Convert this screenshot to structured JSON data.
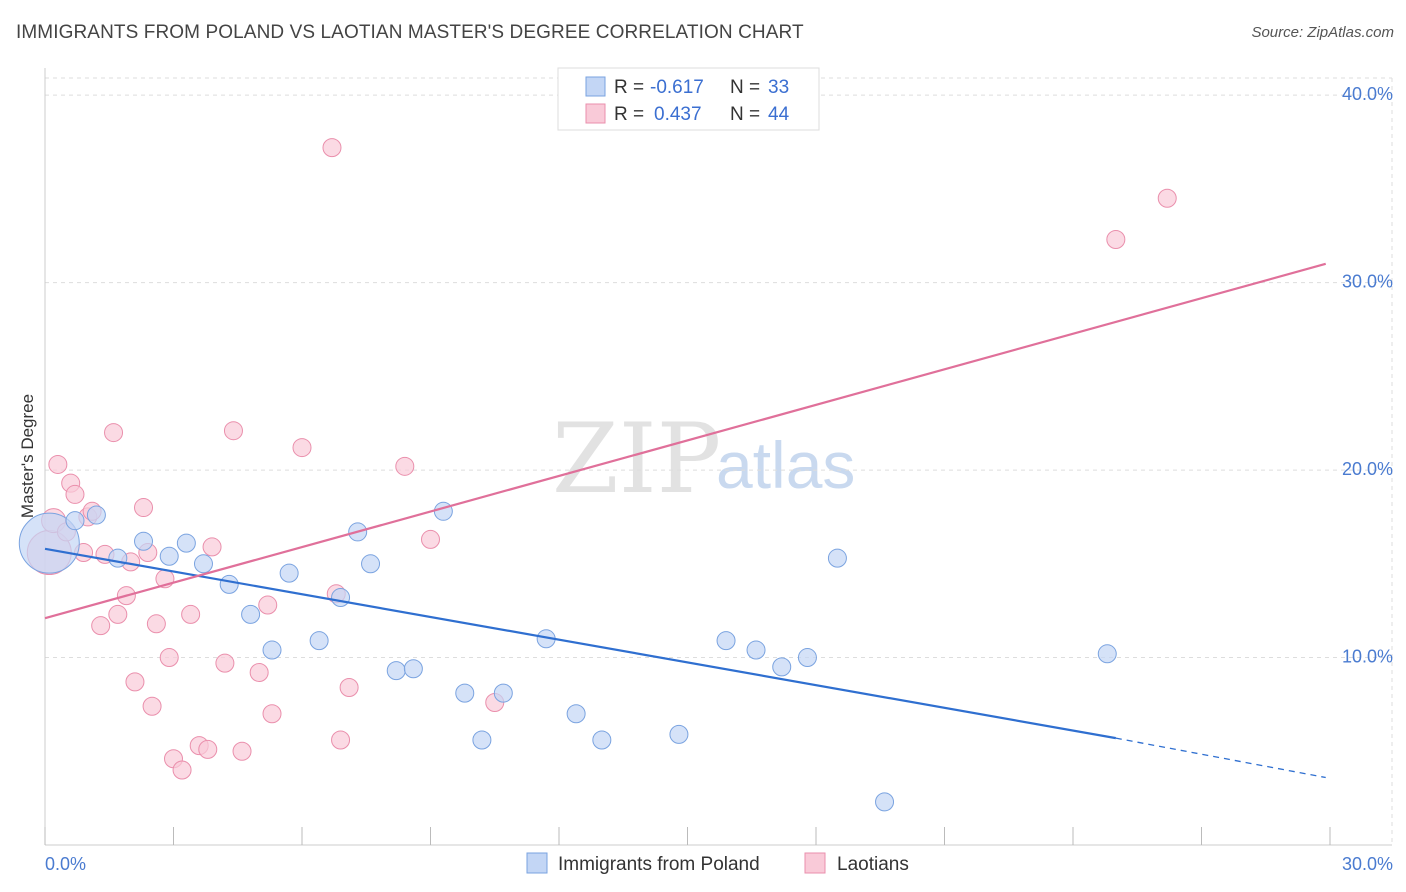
{
  "title": "IMMIGRANTS FROM POLAND VS LAOTIAN MASTER'S DEGREE CORRELATION CHART",
  "source": "Source: ZipAtlas.com",
  "watermark": {
    "zip": "ZIP",
    "atlas": "atlas"
  },
  "colors": {
    "blue_fill": "#c3d6f5",
    "blue_stroke": "#7aa3e0",
    "blue_line": "#2f6fd0",
    "pink_fill": "#f9cad8",
    "pink_stroke": "#ea8fac",
    "pink_line": "#e0709a",
    "grid": "#dddddd",
    "axis_text": "#4a7bd0"
  },
  "legend": {
    "r_label": "R =",
    "n_label": "N =",
    "rows": [
      {
        "series": "blue",
        "r": "-0.617",
        "n": "33"
      },
      {
        "series": "pink",
        "r": "0.437",
        "n": "44"
      }
    ]
  },
  "chart_data": {
    "type": "scatter",
    "title": "IMMIGRANTS FROM POLAND VS LAOTIAN MASTER'S DEGREE CORRELATION CHART",
    "xlabel": "",
    "ylabel": "Master's Degree",
    "xlim": [
      0,
      30
    ],
    "ylim": [
      0,
      40
    ],
    "x_tick_labels": [
      "0.0%",
      "30.0%"
    ],
    "y_ticks": [
      10,
      20,
      30,
      40
    ],
    "y_tick_labels": [
      "10.0%",
      "20.0%",
      "30.0%",
      "40.0%"
    ],
    "series": [
      {
        "name": "Immigrants from Poland",
        "color": "blue",
        "r": -0.617,
        "n": 33,
        "trend": {
          "x0": 0,
          "y0": 15.8,
          "x1": 25.0,
          "y1": 5.7,
          "dash_to_x": 29.9,
          "dash_to_y": 3.6
        },
        "points": [
          [
            0.1,
            16.1,
            30
          ],
          [
            0.7,
            17.3,
            9
          ],
          [
            1.2,
            17.6,
            9
          ],
          [
            1.7,
            15.3,
            9
          ],
          [
            2.3,
            16.2,
            9
          ],
          [
            2.9,
            15.4,
            9
          ],
          [
            3.3,
            16.1,
            9
          ],
          [
            3.7,
            15.0,
            9
          ],
          [
            4.3,
            13.9,
            9
          ],
          [
            4.8,
            12.3,
            9
          ],
          [
            5.3,
            10.4,
            9
          ],
          [
            5.7,
            14.5,
            9
          ],
          [
            6.4,
            10.9,
            9
          ],
          [
            6.9,
            13.2,
            9
          ],
          [
            7.3,
            16.7,
            9
          ],
          [
            7.6,
            15.0,
            9
          ],
          [
            8.2,
            9.3,
            9
          ],
          [
            8.6,
            9.4,
            9
          ],
          [
            9.3,
            17.8,
            9
          ],
          [
            9.8,
            8.1,
            9
          ],
          [
            10.2,
            5.6,
            9
          ],
          [
            10.7,
            8.1,
            9
          ],
          [
            11.7,
            11.0,
            9
          ],
          [
            12.4,
            7.0,
            9
          ],
          [
            13.0,
            5.6,
            9
          ],
          [
            14.8,
            5.9,
            9
          ],
          [
            15.9,
            10.9,
            9
          ],
          [
            16.6,
            10.4,
            9
          ],
          [
            17.2,
            9.5,
            9
          ],
          [
            17.8,
            10.0,
            9
          ],
          [
            18.5,
            15.3,
            9
          ],
          [
            19.6,
            2.3,
            9
          ],
          [
            24.8,
            10.2,
            9
          ]
        ]
      },
      {
        "name": "Laotians",
        "color": "pink",
        "r": 0.437,
        "n": 44,
        "trend": {
          "x0": 0,
          "y0": 12.1,
          "x1": 29.9,
          "y1": 31.0
        },
        "points": [
          [
            0.1,
            15.6,
            22
          ],
          [
            0.2,
            17.3,
            12
          ],
          [
            0.3,
            20.3,
            9
          ],
          [
            0.5,
            16.7,
            9
          ],
          [
            0.6,
            19.3,
            9
          ],
          [
            0.7,
            18.7,
            9
          ],
          [
            0.9,
            15.6,
            9
          ],
          [
            1.0,
            17.5,
            9
          ],
          [
            1.1,
            17.8,
            9
          ],
          [
            1.3,
            11.7,
            9
          ],
          [
            1.4,
            15.5,
            9
          ],
          [
            1.6,
            22.0,
            9
          ],
          [
            1.7,
            12.3,
            9
          ],
          [
            1.9,
            13.3,
            9
          ],
          [
            2.0,
            15.1,
            9
          ],
          [
            2.1,
            8.7,
            9
          ],
          [
            2.3,
            18.0,
            9
          ],
          [
            2.4,
            15.6,
            9
          ],
          [
            2.5,
            7.4,
            9
          ],
          [
            2.6,
            11.8,
            9
          ],
          [
            2.8,
            14.2,
            9
          ],
          [
            2.9,
            10.0,
            9
          ],
          [
            3.0,
            4.6,
            9
          ],
          [
            3.2,
            4.0,
            9
          ],
          [
            3.4,
            12.3,
            9
          ],
          [
            3.6,
            5.3,
            9
          ],
          [
            3.8,
            5.1,
            9
          ],
          [
            3.9,
            15.9,
            9
          ],
          [
            4.2,
            9.7,
            9
          ],
          [
            4.4,
            22.1,
            9
          ],
          [
            4.6,
            5.0,
            9
          ],
          [
            5.0,
            9.2,
            9
          ],
          [
            5.2,
            12.8,
            9
          ],
          [
            5.3,
            7.0,
            9
          ],
          [
            6.0,
            21.2,
            9
          ],
          [
            6.7,
            37.2,
            9
          ],
          [
            6.8,
            13.4,
            9
          ],
          [
            6.9,
            5.6,
            9
          ],
          [
            7.1,
            8.4,
            9
          ],
          [
            8.4,
            20.2,
            9
          ],
          [
            9.0,
            16.3,
            9
          ],
          [
            10.5,
            7.6,
            9
          ],
          [
            25.0,
            32.3,
            9
          ],
          [
            26.2,
            34.5,
            9
          ]
        ]
      }
    ],
    "legend": [
      "Immigrants from Poland",
      "Laotians"
    ]
  }
}
